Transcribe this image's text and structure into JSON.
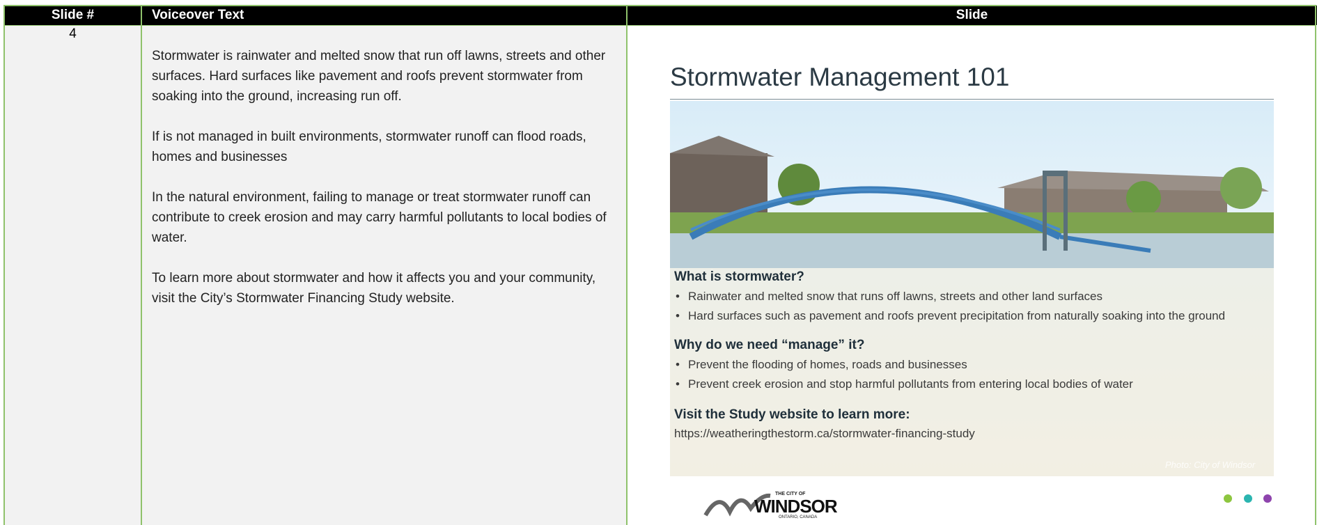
{
  "table": {
    "header": [
      "Slide #",
      "Voiceover Text",
      "Slide"
    ],
    "rows": [
      {
        "slide_number": "4",
        "voiceover": [
          "Stormwater is rainwater and melted snow that run off lawns, streets and other surfaces. Hard surfaces like pavement and roofs prevent stormwater from soaking into the ground, increasing run off.",
          "If is not managed in built environments, stormwater runoff can flood roads, homes and businesses",
          "In the natural environment, failing to manage or treat stormwater runoff can contribute to creek erosion and may carry harmful pollutants to local bodies of water.",
          "To learn more about stormwater and how it affects you and your community, visit the City’s Stormwater Financing Study website."
        ],
        "slide": {
          "title": "Stormwater Management 101",
          "sections": [
            {
              "heading": "What is stormwater?",
              "bullets": [
                "Rainwater and melted snow that runs off lawns, streets and other land surfaces",
                "Hard surfaces such as pavement and roofs prevent precipitation from naturally soaking into the ground"
              ]
            },
            {
              "heading": "Why do we need “manage” it?",
              "bullets": [
                "Prevent the flooding of homes, roads and businesses",
                "Prevent creek erosion and stop harmful pollutants from entering local bodies of water"
              ]
            }
          ],
          "cta": "Visit the Study website to learn more:",
          "url": "https://weatheringthestorm.ca/stormwater-financing-study",
          "credit": "Photo: City of Windsor",
          "logo": {
            "top": "THE CITY OF",
            "name": "WINDSOR",
            "bottom": "ONTARIO, CANADA"
          }
        }
      }
    ]
  }
}
